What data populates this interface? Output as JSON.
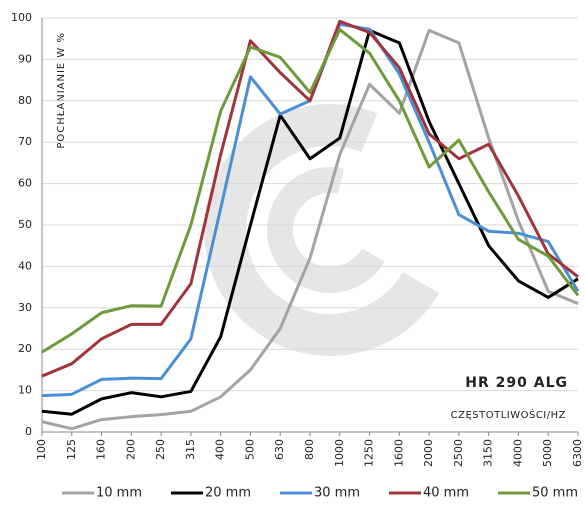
{
  "chart_data": {
    "type": "line",
    "y_label": "POCHŁANIANIE W %",
    "annotations": [
      "HR 290 ALG",
      "CZĘSTOTLIWOŚCI/HZ"
    ],
    "categories": [
      "100",
      "125",
      "160",
      "200",
      "250",
      "315",
      "400",
      "500",
      "630",
      "800",
      "1000",
      "1250",
      "1600",
      "2000",
      "2500",
      "3150",
      "4000",
      "5000",
      "6300"
    ],
    "series": [
      {
        "name": "10 mm",
        "color": "#a3a3a3",
        "values": [
          2.5,
          0.8,
          3,
          3.7,
          4.2,
          5,
          8.5,
          15,
          25,
          42,
          67,
          84,
          77,
          97,
          94,
          71,
          51,
          34,
          31
        ]
      },
      {
        "name": "20 mm",
        "color": "#000000",
        "values": [
          5,
          4.3,
          8,
          9.5,
          8.5,
          9.8,
          23,
          50,
          76.5,
          66,
          71,
          97,
          94,
          75,
          60,
          45,
          36.5,
          32.5,
          37
        ]
      },
      {
        "name": "30 mm",
        "color": "#4a8fd6",
        "values": [
          8.8,
          9.1,
          12.7,
          13,
          12.9,
          22.5,
          54,
          85.8,
          76.8,
          80,
          98.5,
          97.3,
          86.5,
          70,
          52.5,
          48.5,
          48,
          46,
          34
        ]
      },
      {
        "name": "40 mm",
        "color": "#a0343a",
        "values": [
          13.5,
          16.5,
          22.5,
          26,
          26,
          35.8,
          67,
          94.5,
          86.8,
          80,
          99.2,
          96.5,
          88,
          72,
          66,
          69.5,
          57,
          43,
          37.5
        ]
      },
      {
        "name": "50 mm",
        "color": "#6e9a3c",
        "values": [
          19.3,
          23.7,
          28.8,
          30.5,
          30.4,
          50,
          77.5,
          93,
          90.5,
          82,
          97.2,
          91.5,
          80,
          64,
          70.5,
          58,
          46.5,
          42.5,
          33
        ]
      }
    ],
    "ylim": [
      0,
      100
    ],
    "yticks": [
      0,
      10,
      20,
      30,
      40,
      50,
      60,
      70,
      80,
      90,
      100
    ],
    "grid": true
  }
}
